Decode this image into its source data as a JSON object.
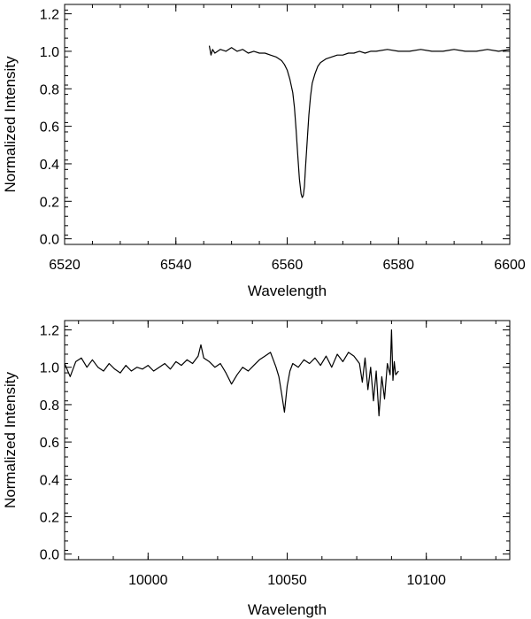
{
  "chart_data": [
    {
      "type": "line",
      "title": "",
      "xlabel": "Wavelength",
      "ylabel": "Normalized Intensity",
      "xlim": [
        6520,
        6600
      ],
      "ylim": [
        -0.03,
        1.25
      ],
      "xticks": [
        6520,
        6540,
        6560,
        6580,
        6600
      ],
      "xtick_labels": [
        "6520",
        "6540",
        "6560",
        "6580",
        "6600"
      ],
      "yticks": [
        0.0,
        0.2,
        0.4,
        0.6,
        0.8,
        1.0,
        1.2
      ],
      "ytick_labels": [
        "0.0",
        "0.2",
        "0.4",
        "0.6",
        "0.8",
        "1.0",
        "1.2"
      ],
      "grid": false,
      "series": [
        {
          "color": "#000000",
          "x": [
            6546.0,
            6546.3,
            6546.6,
            6547.0,
            6548.0,
            6549.0,
            6550.0,
            6551.0,
            6552.0,
            6553.0,
            6554.0,
            6555.0,
            6556.0,
            6557.0,
            6558.0,
            6558.5,
            6559.0,
            6559.5,
            6560.0,
            6560.5,
            6561.0,
            6561.3,
            6561.6,
            6561.9,
            6562.2,
            6562.5,
            6562.7,
            6562.9,
            6563.1,
            6563.3,
            6563.6,
            6563.9,
            6564.2,
            6564.5,
            6565.0,
            6565.5,
            6566.0,
            6566.5,
            6567.0,
            6568.0,
            6569.0,
            6570.0,
            6571.0,
            6572.0,
            6573.0,
            6574.0,
            6575.0,
            6576.0,
            6578.0,
            6580.0,
            6582.0,
            6584.0,
            6586.0,
            6588.0,
            6590.0,
            6592.0,
            6594.0,
            6596.0,
            6598.0,
            6600.0
          ],
          "y": [
            1.03,
            0.98,
            1.01,
            0.99,
            1.01,
            1.0,
            1.02,
            1.0,
            1.01,
            0.99,
            1.0,
            0.99,
            0.99,
            0.98,
            0.97,
            0.96,
            0.95,
            0.93,
            0.9,
            0.85,
            0.78,
            0.7,
            0.58,
            0.45,
            0.32,
            0.24,
            0.22,
            0.23,
            0.28,
            0.38,
            0.52,
            0.66,
            0.76,
            0.83,
            0.88,
            0.92,
            0.94,
            0.95,
            0.96,
            0.97,
            0.98,
            0.98,
            0.99,
            0.99,
            1.0,
            0.99,
            1.0,
            1.0,
            1.01,
            1.0,
            1.0,
            1.01,
            1.0,
            1.0,
            1.01,
            1.0,
            1.0,
            1.01,
            1.0,
            1.01
          ]
        }
      ]
    },
    {
      "type": "line",
      "title": "",
      "xlabel": "Wavelength",
      "ylabel": "Normalized Intensity",
      "xlim": [
        9970,
        10130
      ],
      "ylim": [
        -0.03,
        1.25
      ],
      "xticks": [
        10000,
        10050,
        10100
      ],
      "xtick_labels": [
        "10000",
        "10050",
        "10100"
      ],
      "yticks": [
        0.0,
        0.2,
        0.4,
        0.6,
        0.8,
        1.0,
        1.2
      ],
      "ytick_labels": [
        "0.0",
        "0.2",
        "0.4",
        "0.6",
        "0.8",
        "1.0",
        "1.2"
      ],
      "grid": false,
      "series": [
        {
          "color": "#000000",
          "x": [
            9970,
            9972,
            9974,
            9976,
            9978,
            9980,
            9982,
            9984,
            9986,
            9988,
            9990,
            9992,
            9994,
            9996,
            9998,
            10000,
            10002,
            10004,
            10006,
            10008,
            10010,
            10012,
            10014,
            10016,
            10018,
            10019,
            10020,
            10022,
            10024,
            10026,
            10028,
            10030,
            10032,
            10034,
            10036,
            10038,
            10040,
            10042,
            10044,
            10045,
            10046,
            10047,
            10048,
            10049,
            10050,
            10051,
            10052,
            10054,
            10056,
            10058,
            10060,
            10062,
            10064,
            10066,
            10068,
            10070,
            10072,
            10074,
            10076,
            10077,
            10078,
            10079,
            10080,
            10081,
            10082,
            10083,
            10084,
            10085,
            10086,
            10087,
            10087.5,
            10088,
            10088.5,
            10089,
            10090
          ],
          "y": [
            1.02,
            0.95,
            1.03,
            1.05,
            1.0,
            1.04,
            1.0,
            0.98,
            1.02,
            0.99,
            0.97,
            1.01,
            0.98,
            1.0,
            0.99,
            1.01,
            0.98,
            1.0,
            1.02,
            0.99,
            1.03,
            1.01,
            1.04,
            1.02,
            1.06,
            1.12,
            1.05,
            1.03,
            1.0,
            1.02,
            0.97,
            0.91,
            0.96,
            1.0,
            0.98,
            1.01,
            1.04,
            1.06,
            1.08,
            1.04,
            1.0,
            0.95,
            0.86,
            0.76,
            0.9,
            0.98,
            1.02,
            1.0,
            1.04,
            1.02,
            1.05,
            1.01,
            1.06,
            1.0,
            1.07,
            1.03,
            1.08,
            1.06,
            1.02,
            0.92,
            1.05,
            0.88,
            1.0,
            0.82,
            0.98,
            0.74,
            0.95,
            0.83,
            1.02,
            0.96,
            1.2,
            0.93,
            1.03,
            0.96,
            0.98
          ]
        }
      ]
    }
  ]
}
